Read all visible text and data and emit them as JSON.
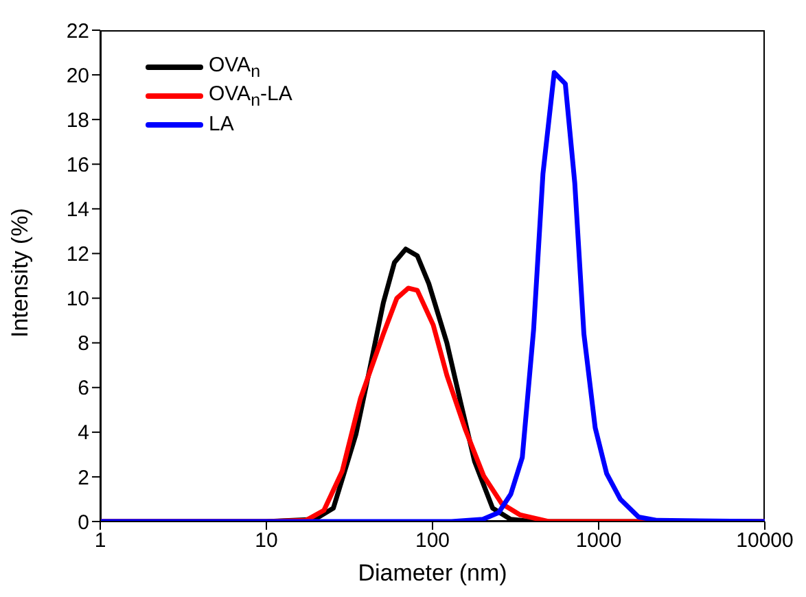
{
  "chart_data": {
    "type": "line",
    "xlabel": "Diameter (nm)",
    "ylabel": "Intensity (%)",
    "log": "x",
    "xlim": [
      1,
      10000
    ],
    "xticks": [
      1,
      10,
      100,
      1000,
      10000
    ],
    "ylim": [
      0,
      22
    ],
    "yticks": [
      0,
      2,
      4,
      6,
      8,
      10,
      12,
      14,
      16,
      18,
      20,
      22
    ],
    "legend": "top left",
    "grid": false,
    "marker": "none",
    "line_style": "solid",
    "series": [
      {
        "name": "OVA$_{n}$",
        "color": "#000000",
        "x": [
          1,
          10,
          19.6,
          25.3,
          34.6,
          41.8,
          50.6,
          59,
          69,
          81,
          95,
          122,
          148,
          179,
          230,
          295,
          400,
          1000,
          10000
        ],
        "values": [
          0,
          0,
          0.1,
          0.6,
          3.9,
          6.8,
          9.8,
          11.6,
          12.2,
          11.9,
          10.65,
          8.0,
          5.3,
          2.7,
          0.6,
          0.1,
          0,
          0,
          0
        ]
      },
      {
        "name": "OVA$_{n}$-LA",
        "color": "#ff0000",
        "x": [
          1,
          10,
          17.3,
          22.2,
          28.6,
          36.8,
          50.6,
          61,
          71.5,
          81,
          101,
          122,
          158,
          203,
          261,
          336,
          500,
          1000,
          10000
        ],
        "values": [
          0,
          0,
          0.05,
          0.5,
          2.25,
          5.5,
          8.4,
          10.0,
          10.45,
          10.35,
          8.8,
          6.55,
          4.1,
          2.05,
          0.8,
          0.3,
          0,
          0,
          0
        ]
      },
      {
        "name": "LA",
        "color": "#0000ff",
        "x": [
          1,
          100,
          130,
          201,
          250,
          296,
          347,
          406,
          462,
          540,
          630,
          718,
          815,
          953,
          1117,
          1350,
          1740,
          2250,
          10000
        ],
        "values": [
          0,
          0,
          0,
          0.1,
          0.4,
          1.23,
          2.87,
          8.6,
          15.57,
          20.1,
          19.6,
          15.16,
          8.4,
          4.2,
          2.15,
          1.0,
          0.2,
          0.05,
          0
        ]
      }
    ]
  }
}
